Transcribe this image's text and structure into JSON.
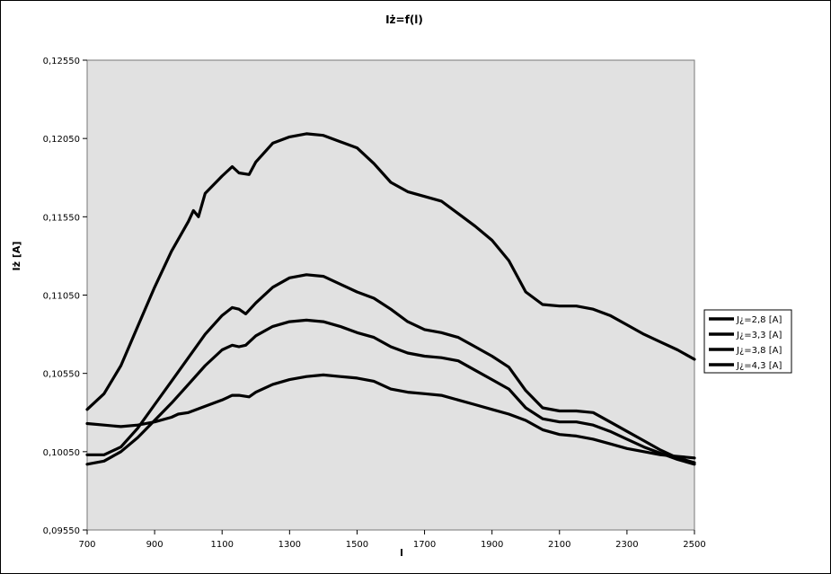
{
  "chart_data": {
    "type": "line",
    "title": "Iż=f(l)",
    "xlabel": "l",
    "ylabel": "Iż [A]",
    "xlim": [
      700,
      2500
    ],
    "ylim": [
      0.0955,
      0.1255
    ],
    "x_ticks": [
      "700",
      "900",
      "1100",
      "1300",
      "1500",
      "1700",
      "1900",
      "2100",
      "2300",
      "2500"
    ],
    "y_ticks": [
      "0,09550",
      "0,10050",
      "0,10550",
      "0,11050",
      "0,11550",
      "0,12050",
      "0,12550"
    ],
    "grid": false,
    "plot_background": "#e1e1e1",
    "line_color": "#000000",
    "legend_position": "right",
    "series": [
      {
        "name": "J¿=2,8 [A]",
        "x": [
          700,
          750,
          800,
          850,
          900,
          950,
          1000,
          1015,
          1030,
          1050,
          1100,
          1130,
          1150,
          1180,
          1200,
          1250,
          1300,
          1350,
          1400,
          1450,
          1500,
          1550,
          1600,
          1650,
          1700,
          1750,
          1800,
          1850,
          1900,
          1950,
          2000,
          2050,
          2100,
          2150,
          2200,
          2250,
          2300,
          2350,
          2400,
          2450,
          2500
        ],
        "y": [
          0.1032,
          0.1042,
          0.106,
          0.1085,
          0.111,
          0.1133,
          0.1152,
          0.1159,
          0.1155,
          0.117,
          0.1181,
          0.1187,
          0.1183,
          0.1182,
          0.119,
          0.1202,
          0.1206,
          0.1208,
          0.1207,
          0.1203,
          0.1199,
          0.1189,
          0.1177,
          0.1171,
          0.1168,
          0.1165,
          0.1157,
          0.1149,
          0.114,
          0.1127,
          0.1107,
          0.1099,
          0.1098,
          0.1098,
          0.1096,
          0.1092,
          0.1086,
          0.108,
          0.1075,
          0.107,
          0.1064
        ]
      },
      {
        "name": "J¿=3,3 [A]",
        "x": [
          700,
          750,
          800,
          850,
          900,
          950,
          1000,
          1050,
          1100,
          1130,
          1150,
          1170,
          1200,
          1250,
          1300,
          1350,
          1400,
          1450,
          1500,
          1550,
          1600,
          1650,
          1700,
          1750,
          1800,
          1850,
          1900,
          1950,
          2000,
          2050,
          2100,
          2150,
          2200,
          2250,
          2300,
          2350,
          2400,
          2450,
          2500
        ],
        "y": [
          0.1003,
          0.1003,
          0.1008,
          0.102,
          0.1035,
          0.105,
          0.1065,
          0.108,
          0.1092,
          0.1097,
          0.1096,
          0.1093,
          0.11,
          0.111,
          0.1116,
          0.1118,
          0.1117,
          0.1112,
          0.1107,
          0.1103,
          0.1096,
          0.1088,
          0.1083,
          0.1081,
          0.1078,
          0.1072,
          0.1066,
          0.1059,
          0.1044,
          0.1033,
          0.1031,
          0.1031,
          0.103,
          0.1024,
          0.1018,
          0.1012,
          0.1006,
          0.1001,
          0.0998
        ]
      },
      {
        "name": "J¿=3,8 [A]",
        "x": [
          700,
          750,
          800,
          850,
          900,
          950,
          1000,
          1050,
          1100,
          1130,
          1150,
          1170,
          1200,
          1250,
          1300,
          1350,
          1400,
          1450,
          1500,
          1550,
          1600,
          1650,
          1700,
          1750,
          1800,
          1850,
          1900,
          1950,
          2000,
          2050,
          2100,
          2150,
          2200,
          2250,
          2300,
          2350,
          2400,
          2450,
          2500
        ],
        "y": [
          0.0997,
          0.0999,
          0.1005,
          0.1014,
          0.1025,
          0.1036,
          0.1048,
          0.106,
          0.107,
          0.1073,
          0.1072,
          0.1073,
          0.1079,
          0.1085,
          0.1088,
          0.1089,
          0.1088,
          0.1085,
          0.1081,
          0.1078,
          0.1072,
          0.1068,
          0.1066,
          0.1065,
          0.1063,
          0.1057,
          0.1051,
          0.1045,
          0.1033,
          0.1026,
          0.1024,
          0.1024,
          0.1022,
          0.1018,
          0.1013,
          0.1008,
          0.1004,
          0.1,
          0.0997
        ]
      },
      {
        "name": "J¿=4,3 [A]",
        "x": [
          700,
          750,
          800,
          850,
          900,
          950,
          970,
          1000,
          1050,
          1100,
          1130,
          1150,
          1180,
          1200,
          1250,
          1300,
          1350,
          1400,
          1450,
          1500,
          1550,
          1600,
          1650,
          1700,
          1750,
          1800,
          1850,
          1900,
          1950,
          2000,
          2050,
          2100,
          2150,
          2200,
          2250,
          2300,
          2350,
          2400,
          2450,
          2500
        ],
        "y": [
          0.1023,
          0.1022,
          0.1021,
          0.1022,
          0.1024,
          0.1027,
          0.1029,
          0.103,
          0.1034,
          0.1038,
          0.1041,
          0.1041,
          0.104,
          0.1043,
          0.1048,
          0.1051,
          0.1053,
          0.1054,
          0.1053,
          0.1052,
          0.105,
          0.1045,
          0.1043,
          0.1042,
          0.1041,
          0.1038,
          0.1035,
          0.1032,
          0.1029,
          0.1025,
          0.1019,
          0.1016,
          0.1015,
          0.1013,
          0.101,
          0.1007,
          0.1005,
          0.1003,
          0.1002,
          0.1001
        ]
      }
    ]
  }
}
